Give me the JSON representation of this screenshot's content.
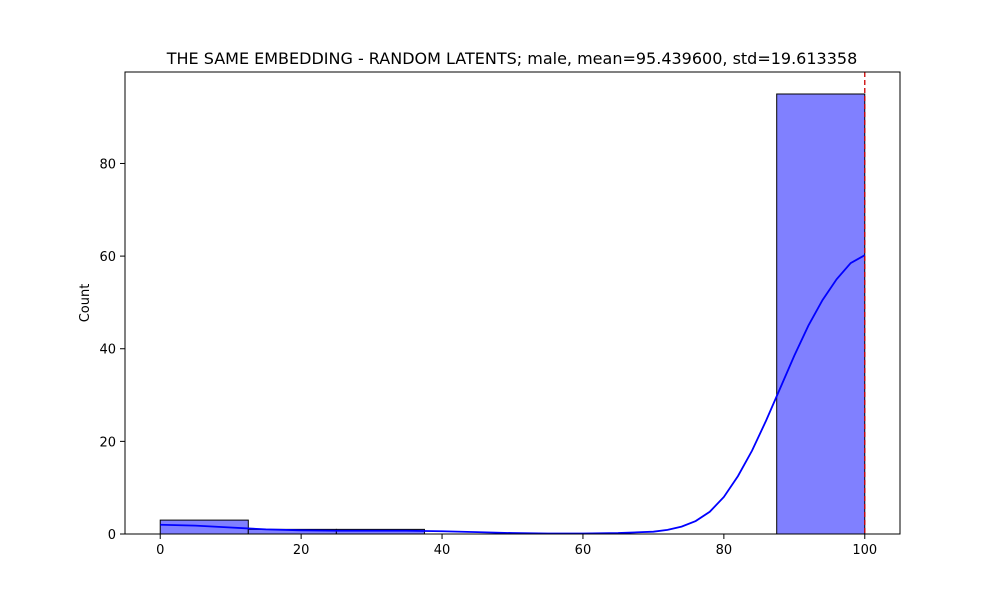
{
  "chart_data": {
    "type": "bar",
    "title": "THE SAME EMBEDDING - RANDOM LATENTS; male, mean=95.439600, std=19.613358",
    "xlabel": "",
    "ylabel": "Count",
    "xlim": [
      -5,
      105
    ],
    "ylim": [
      0,
      99.75
    ],
    "xticks": [
      0,
      20,
      40,
      60,
      80,
      100
    ],
    "yticks": [
      0,
      20,
      40,
      60,
      80
    ],
    "bins": [
      {
        "x0": 0,
        "x1": 12.5,
        "count": 3
      },
      {
        "x0": 12.5,
        "x1": 25,
        "count": 1
      },
      {
        "x0": 25,
        "x1": 37.5,
        "count": 1
      },
      {
        "x0": 37.5,
        "x1": 50,
        "count": 0
      },
      {
        "x0": 50,
        "x1": 62.5,
        "count": 0
      },
      {
        "x0": 62.5,
        "x1": 75,
        "count": 0
      },
      {
        "x0": 75,
        "x1": 87.5,
        "count": 0
      },
      {
        "x0": 87.5,
        "x1": 100,
        "count": 95
      }
    ],
    "kde": {
      "x": [
        0,
        5,
        10,
        15,
        20,
        25,
        30,
        35,
        40,
        45,
        50,
        55,
        60,
        65,
        70,
        72,
        74,
        76,
        78,
        80,
        82,
        84,
        86,
        88,
        90,
        92,
        94,
        96,
        98,
        100
      ],
      "y": [
        2.0,
        1.8,
        1.4,
        1.0,
        0.8,
        0.7,
        0.7,
        0.7,
        0.6,
        0.4,
        0.2,
        0.1,
        0.1,
        0.2,
        0.5,
        0.9,
        1.6,
        2.8,
        4.8,
        8.0,
        12.5,
        18.0,
        24.5,
        31.5,
        38.5,
        45.0,
        50.5,
        55.0,
        58.5,
        60.2
      ]
    },
    "reference_line": {
      "x": 100,
      "style": "dashed"
    },
    "colors": {
      "bar_fill": "#8080ff",
      "bar_edge": "#000000",
      "kde": "#0000ff",
      "reference_line": "#cc0000"
    },
    "grid": false,
    "legend": "none"
  }
}
